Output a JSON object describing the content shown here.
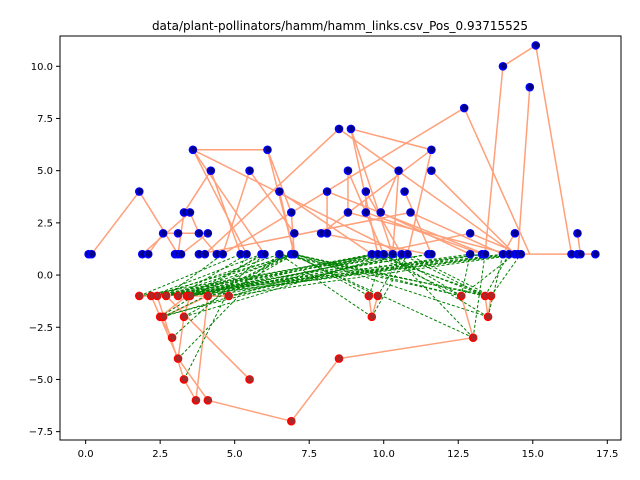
{
  "chart_data": {
    "type": "scatter",
    "title": "data/plant-pollinators/hamm/hamm_links.csv_Pos_0.93715525",
    "xlabel": "",
    "ylabel": "",
    "xlim": [
      -0.86,
      17.96
    ],
    "ylim": [
      -7.9,
      11.45
    ],
    "x_ticks": [
      0.0,
      2.5,
      5.0,
      7.5,
      10.0,
      12.5,
      15.0,
      17.5
    ],
    "x_tick_labels": [
      "0.0",
      "2.5",
      "5.0",
      "7.5",
      "10.0",
      "12.5",
      "15.0",
      "17.5"
    ],
    "y_ticks": [
      -7.5,
      -5.0,
      -2.5,
      0.0,
      2.5,
      5.0,
      7.5,
      10.0
    ],
    "y_tick_labels": [
      "−7.5",
      "−5.0",
      "−2.5",
      "0.0",
      "2.5",
      "5.0",
      "7.5",
      "10.0"
    ],
    "grid": false,
    "legend": "none",
    "colors": {
      "node_outer_blue": "#0000ff",
      "node_inner_blue": "#00008b",
      "node_outer_red": "#ff0000",
      "node_inner_red": "#a52a2a",
      "tree_edge": "#ffa07a",
      "dashed_edge": "#008000"
    },
    "blue_nodes": [
      [
        0.1,
        1
      ],
      [
        0.2,
        1
      ],
      [
        1.9,
        1
      ],
      [
        2.1,
        1
      ],
      [
        3.0,
        1
      ],
      [
        3.1,
        1
      ],
      [
        3.2,
        1
      ],
      [
        3.8,
        1
      ],
      [
        4.0,
        1
      ],
      [
        4.4,
        1
      ],
      [
        4.6,
        1
      ],
      [
        5.2,
        1
      ],
      [
        5.4,
        1
      ],
      [
        5.9,
        1
      ],
      [
        6.0,
        1
      ],
      [
        6.5,
        1
      ],
      [
        6.9,
        1
      ],
      [
        7.0,
        1
      ],
      [
        9.6,
        1
      ],
      [
        9.8,
        1
      ],
      [
        10.0,
        1
      ],
      [
        10.3,
        1
      ],
      [
        10.6,
        1
      ],
      [
        10.8,
        1
      ],
      [
        11.5,
        1
      ],
      [
        11.6,
        1
      ],
      [
        12.9,
        1
      ],
      [
        13.3,
        1
      ],
      [
        13.4,
        1
      ],
      [
        14.0,
        1
      ],
      [
        14.2,
        1
      ],
      [
        14.4,
        1
      ],
      [
        14.5,
        1
      ],
      [
        14.6,
        1
      ],
      [
        16.3,
        1
      ],
      [
        16.5,
        1
      ],
      [
        16.6,
        1
      ],
      [
        17.1,
        1
      ],
      [
        2.6,
        2
      ],
      [
        3.1,
        2
      ],
      [
        3.8,
        2
      ],
      [
        4.1,
        2
      ],
      [
        7.0,
        2
      ],
      [
        7.9,
        2
      ],
      [
        8.1,
        2
      ],
      [
        12.9,
        2
      ],
      [
        14.4,
        2
      ],
      [
        16.5,
        2
      ],
      [
        3.3,
        3
      ],
      [
        3.5,
        3
      ],
      [
        6.9,
        3
      ],
      [
        8.8,
        3
      ],
      [
        9.4,
        3
      ],
      [
        9.9,
        3
      ],
      [
        10.9,
        3
      ],
      [
        1.8,
        4
      ],
      [
        6.5,
        4
      ],
      [
        8.1,
        4
      ],
      [
        9.4,
        4
      ],
      [
        10.7,
        4
      ],
      [
        4.2,
        5
      ],
      [
        5.5,
        5
      ],
      [
        8.8,
        5
      ],
      [
        10.5,
        5
      ],
      [
        11.6,
        5
      ],
      [
        3.6,
        6
      ],
      [
        6.1,
        6
      ],
      [
        11.6,
        6
      ],
      [
        8.5,
        7
      ],
      [
        8.9,
        7
      ],
      [
        12.7,
        8
      ],
      [
        14.9,
        9
      ],
      [
        14.0,
        10
      ],
      [
        15.1,
        11
      ]
    ],
    "red_nodes": [
      [
        1.8,
        -1
      ],
      [
        2.2,
        -1
      ],
      [
        2.4,
        -1
      ],
      [
        2.7,
        -1
      ],
      [
        3.1,
        -1
      ],
      [
        3.4,
        -1
      ],
      [
        3.5,
        -1
      ],
      [
        4.1,
        -1
      ],
      [
        4.8,
        -1
      ],
      [
        9.5,
        -1
      ],
      [
        9.8,
        -1
      ],
      [
        12.6,
        -1
      ],
      [
        13.4,
        -1
      ],
      [
        13.6,
        -1
      ],
      [
        2.5,
        -2
      ],
      [
        2.6,
        -2
      ],
      [
        3.3,
        -2
      ],
      [
        9.6,
        -2
      ],
      [
        13.5,
        -2
      ],
      [
        2.9,
        -3
      ],
      [
        13.0,
        -3
      ],
      [
        3.1,
        -4
      ],
      [
        8.5,
        -4
      ],
      [
        3.3,
        -5
      ],
      [
        5.5,
        -5
      ],
      [
        3.7,
        -6
      ],
      [
        4.1,
        -6
      ],
      [
        6.9,
        -7
      ]
    ],
    "tree_edges": [
      [
        0.2,
        1,
        1.8,
        4
      ],
      [
        1.8,
        4,
        3.1,
        1
      ],
      [
        3.1,
        1,
        3.3,
        3
      ],
      [
        3.3,
        3,
        4.2,
        5
      ],
      [
        4.2,
        5,
        5.2,
        1
      ],
      [
        1.9,
        1,
        3.5,
        3
      ],
      [
        3.5,
        3,
        3.8,
        2
      ],
      [
        3.8,
        2,
        4.4,
        1
      ],
      [
        3.6,
        6,
        6.1,
        6
      ],
      [
        3.6,
        6,
        5.4,
        1
      ],
      [
        6.1,
        6,
        7.0,
        1
      ],
      [
        6.1,
        6,
        6.9,
        3
      ],
      [
        6.9,
        3,
        7.0,
        1
      ],
      [
        3.6,
        6,
        10.6,
        1
      ],
      [
        3.6,
        6,
        6.0,
        1
      ],
      [
        5.5,
        5,
        4.6,
        1
      ],
      [
        5.5,
        5,
        7.0,
        2
      ],
      [
        7.0,
        2,
        6.9,
        1
      ],
      [
        6.5,
        4,
        7.0,
        1
      ],
      [
        6.5,
        4,
        9.6,
        1
      ],
      [
        8.5,
        7,
        4.0,
        1
      ],
      [
        8.5,
        7,
        14.4,
        1
      ],
      [
        8.9,
        7,
        11.6,
        6
      ],
      [
        8.9,
        7,
        9.8,
        1
      ],
      [
        8.9,
        7,
        10.3,
        1
      ],
      [
        11.6,
        6,
        7.9,
        2
      ],
      [
        11.6,
        6,
        10.8,
        1
      ],
      [
        11.6,
        5,
        14.4,
        1
      ],
      [
        8.8,
        5,
        10.0,
        1
      ],
      [
        8.8,
        5,
        8.8,
        3
      ],
      [
        8.1,
        4,
        8.1,
        2
      ],
      [
        8.1,
        4,
        13.4,
        1
      ],
      [
        9.4,
        4,
        9.4,
        3
      ],
      [
        9.4,
        4,
        10.6,
        1
      ],
      [
        10.5,
        5,
        9.9,
        3
      ],
      [
        10.5,
        5,
        10.3,
        1
      ],
      [
        10.7,
        4,
        11.6,
        1
      ],
      [
        10.9,
        3,
        14.0,
        1
      ],
      [
        10.9,
        3,
        3.8,
        1
      ],
      [
        9.9,
        3,
        12.9,
        1
      ],
      [
        8.8,
        3,
        14.2,
        1
      ],
      [
        9.4,
        3,
        13.3,
        1
      ],
      [
        7.9,
        2,
        11.5,
        1
      ],
      [
        12.9,
        2,
        9.6,
        1
      ],
      [
        12.9,
        2,
        14.6,
        1
      ],
      [
        14.4,
        2,
        14.0,
        1
      ],
      [
        12.7,
        8,
        4.6,
        1
      ],
      [
        12.7,
        8,
        14.9,
        1
      ],
      [
        14.0,
        10,
        15.1,
        11
      ],
      [
        14.0,
        10,
        13.4,
        1
      ],
      [
        14.9,
        9,
        14.5,
        1
      ],
      [
        15.1,
        11,
        16.3,
        1
      ],
      [
        16.5,
        2,
        16.6,
        1
      ],
      [
        14.2,
        1,
        17.1,
        1
      ],
      [
        2.6,
        2,
        4.1,
        2
      ],
      [
        4.1,
        2,
        3.1,
        2
      ],
      [
        3.1,
        2,
        2.6,
        2
      ],
      [
        2.6,
        2,
        2.1,
        1
      ],
      [
        4.1,
        2,
        3.2,
        1
      ],
      [
        1.8,
        -1,
        2.7,
        -1
      ],
      [
        2.2,
        -1,
        3.1,
        -4
      ],
      [
        3.1,
        -4,
        4.1,
        -6
      ],
      [
        2.4,
        -1,
        3.3,
        -5
      ],
      [
        3.3,
        -5,
        3.7,
        -6
      ],
      [
        2.7,
        -1,
        5.5,
        -5
      ],
      [
        3.4,
        -1,
        2.5,
        -2
      ],
      [
        2.5,
        -2,
        2.9,
        -3
      ],
      [
        3.5,
        -1,
        3.3,
        -2
      ],
      [
        3.3,
        -2,
        3.1,
        -4
      ],
      [
        4.1,
        -1,
        2.6,
        -2
      ],
      [
        4.8,
        -1,
        3.4,
        -1
      ],
      [
        4.1,
        -6,
        6.9,
        -7
      ],
      [
        6.9,
        -7,
        8.5,
        -4
      ],
      [
        8.5,
        -4,
        13.0,
        -3
      ],
      [
        13.0,
        -3,
        12.6,
        -1
      ],
      [
        9.5,
        -1,
        9.6,
        -2
      ],
      [
        9.6,
        -2,
        9.8,
        -1
      ],
      [
        13.4,
        -1,
        13.5,
        -2
      ],
      [
        13.5,
        -2,
        13.6,
        -1
      ],
      [
        2.2,
        -1,
        1.8,
        -1
      ],
      [
        3.7,
        -6,
        4.1,
        -1
      ],
      [
        4.1,
        -1,
        4.8,
        -1
      ]
    ],
    "dashed_edges": [
      [
        2.2,
        -1,
        5.9,
        1
      ],
      [
        2.2,
        -1,
        7.0,
        1
      ],
      [
        2.2,
        -1,
        9.6,
        1
      ],
      [
        2.2,
        -1,
        10.3,
        1
      ],
      [
        2.2,
        -1,
        13.3,
        1
      ],
      [
        2.4,
        -1,
        6.5,
        1
      ],
      [
        2.4,
        -1,
        9.8,
        1
      ],
      [
        2.4,
        -1,
        11.6,
        1
      ],
      [
        2.4,
        -1,
        14.0,
        1
      ],
      [
        2.7,
        -1,
        4.6,
        1
      ],
      [
        2.7,
        -1,
        6.9,
        1
      ],
      [
        2.7,
        -1,
        10.0,
        1
      ],
      [
        2.7,
        -1,
        12.9,
        1
      ],
      [
        2.7,
        -1,
        14.4,
        1
      ],
      [
        3.1,
        -1,
        5.4,
        1
      ],
      [
        3.1,
        -1,
        7.0,
        1
      ],
      [
        3.1,
        -1,
        10.6,
        1
      ],
      [
        3.1,
        -1,
        13.4,
        1
      ],
      [
        3.4,
        -1,
        6.0,
        1
      ],
      [
        3.4,
        -1,
        9.6,
        1
      ],
      [
        3.4,
        -1,
        11.5,
        1
      ],
      [
        3.4,
        -1,
        14.2,
        1
      ],
      [
        3.5,
        -1,
        6.9,
        1
      ],
      [
        3.5,
        -1,
        10.3,
        1
      ],
      [
        3.5,
        -1,
        14.5,
        1
      ],
      [
        4.1,
        -1,
        7.0,
        1
      ],
      [
        4.1,
        -1,
        10.0,
        1
      ],
      [
        4.1,
        -1,
        13.3,
        1
      ],
      [
        4.8,
        -1,
        6.5,
        1
      ],
      [
        4.8,
        -1,
        10.8,
        1
      ],
      [
        4.8,
        -1,
        14.6,
        1
      ],
      [
        1.8,
        -1,
        5.2,
        1
      ],
      [
        1.8,
        -1,
        9.8,
        1
      ],
      [
        2.5,
        -2,
        5.9,
        1
      ],
      [
        2.5,
        -2,
        10.6,
        1
      ],
      [
        2.6,
        -2,
        6.9,
        1
      ],
      [
        2.6,
        -2,
        9.6,
        1
      ],
      [
        3.3,
        -2,
        7.0,
        1
      ],
      [
        3.3,
        -2,
        10.3,
        1
      ],
      [
        2.9,
        -3,
        6.0,
        1
      ],
      [
        3.1,
        -4,
        6.5,
        1
      ],
      [
        3.3,
        -5,
        5.4,
        1
      ],
      [
        9.5,
        -1,
        7.0,
        1
      ],
      [
        9.5,
        -1,
        10.0,
        1
      ],
      [
        9.8,
        -1,
        6.9,
        1
      ],
      [
        9.8,
        -1,
        10.6,
        1
      ],
      [
        9.6,
        -2,
        6.5,
        1
      ],
      [
        9.6,
        -2,
        10.8,
        1
      ],
      [
        12.6,
        -1,
        6.5,
        1
      ],
      [
        12.6,
        -1,
        7.0,
        1
      ],
      [
        12.6,
        -1,
        9.6,
        1
      ],
      [
        12.6,
        -1,
        10.3,
        1
      ],
      [
        13.4,
        -1,
        6.9,
        1
      ],
      [
        13.4,
        -1,
        7.0,
        1
      ],
      [
        13.4,
        -1,
        9.8,
        1
      ],
      [
        13.4,
        -1,
        10.6,
        1
      ],
      [
        13.6,
        -1,
        6.5,
        1
      ],
      [
        13.6,
        -1,
        9.6,
        1
      ],
      [
        13.6,
        -1,
        10.8,
        1
      ],
      [
        13.5,
        -2,
        7.0,
        1
      ],
      [
        13.5,
        -2,
        10.0,
        1
      ],
      [
        13.0,
        -3,
        6.9,
        1
      ],
      [
        13.0,
        -3,
        10.3,
        1
      ],
      [
        12.6,
        -1,
        14.4,
        1
      ],
      [
        13.4,
        -1,
        14.2,
        1
      ],
      [
        13.6,
        -1,
        14.6,
        1
      ],
      [
        13.5,
        -2,
        14.0,
        1
      ],
      [
        12.6,
        -1,
        12.9,
        1
      ],
      [
        13.0,
        -3,
        13.4,
        1
      ]
    ]
  }
}
